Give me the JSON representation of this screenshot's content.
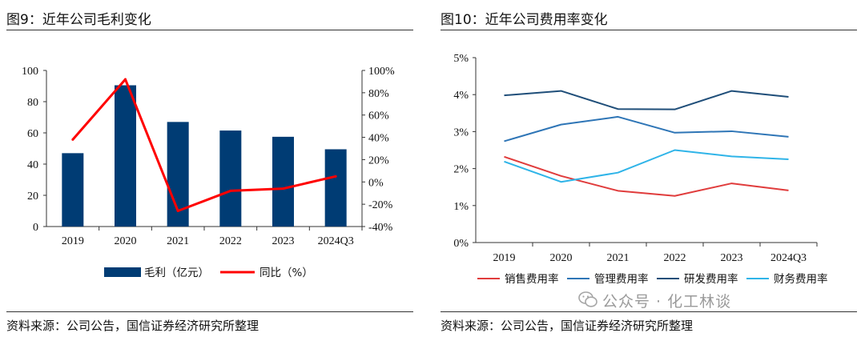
{
  "left_panel": {
    "title": "图9：近年公司毛利变化",
    "source": "资料来源：公司公告，国信证券经济研究所整理"
  },
  "right_panel": {
    "title": "图10：近年公司费用率变化",
    "source": "资料来源：公司公告，国信证券经济研究所整理"
  },
  "watermark": {
    "text": "公众号 · 化工林谈",
    "icon": "wechat-icon"
  },
  "chart_data": [
    {
      "type": "bar",
      "categories": [
        "2019",
        "2020",
        "2021",
        "2022",
        "2023",
        "2024Q3"
      ],
      "ylim": [
        0,
        100
      ],
      "yticks": [
        "0",
        "20",
        "40",
        "60",
        "80",
        "100"
      ],
      "y2lim": [
        -40,
        100
      ],
      "y2ticks": [
        "-40%",
        "-20%",
        "0%",
        "20%",
        "40%",
        "60%",
        "80%",
        "100%"
      ],
      "series": [
        {
          "name": "毛利（亿元）",
          "type": "bar",
          "axis": "left",
          "color": "#003C74",
          "values": [
            47,
            90.5,
            67,
            61.5,
            57.5,
            49.5
          ]
        },
        {
          "name": "同比（%）",
          "type": "line",
          "axis": "right",
          "color": "#FF0000",
          "values": [
            38,
            92,
            -26,
            -8,
            -6,
            5
          ]
        }
      ]
    },
    {
      "type": "line",
      "categories": [
        "2019",
        "2020",
        "2021",
        "2022",
        "2023",
        "2024Q3"
      ],
      "ylim": [
        0,
        5
      ],
      "yticks": [
        "0%",
        "1%",
        "2%",
        "3%",
        "4%",
        "5%"
      ],
      "series": [
        {
          "name": "销售费用率",
          "color": "#E03C3C",
          "values": [
            2.32,
            1.8,
            1.4,
            1.26,
            1.6,
            1.41
          ]
        },
        {
          "name": "管理费用率",
          "color": "#2E75B6",
          "values": [
            2.74,
            3.19,
            3.4,
            2.97,
            3.01,
            2.86
          ]
        },
        {
          "name": "研发费用率",
          "color": "#1F4E79",
          "values": [
            3.98,
            4.1,
            3.61,
            3.6,
            4.1,
            3.94
          ]
        },
        {
          "name": "财务费用率",
          "color": "#2FB4E8",
          "values": [
            2.19,
            1.64,
            1.89,
            2.5,
            2.33,
            2.25
          ]
        }
      ]
    }
  ]
}
